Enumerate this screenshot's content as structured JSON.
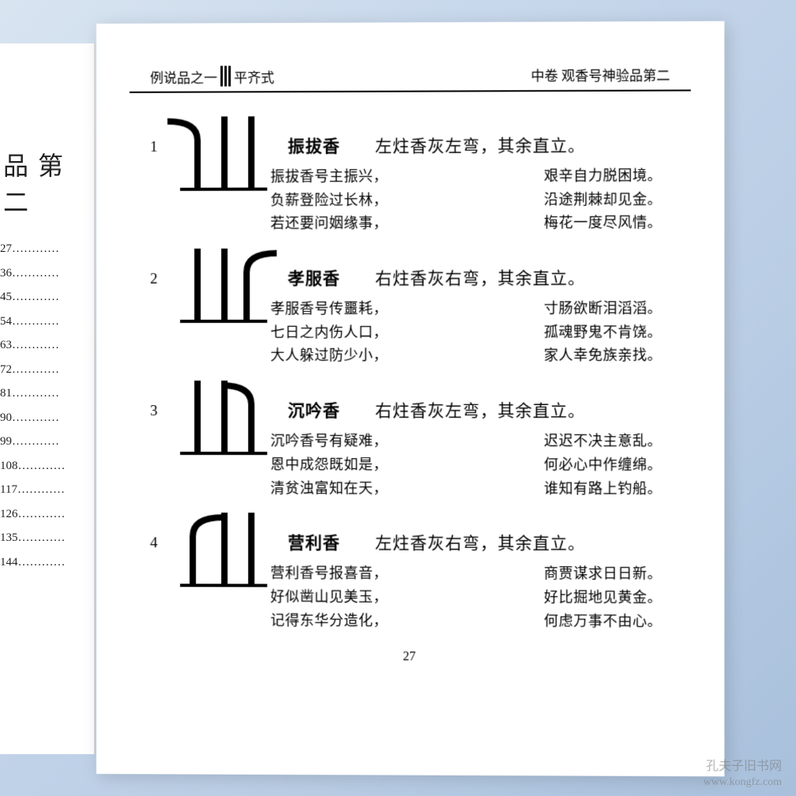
{
  "header": {
    "left_prefix": "例说品之一",
    "left_suffix": "平齐式",
    "right": "中卷 观香号神验品第二"
  },
  "left_page": {
    "title": "品 第 二",
    "toc": [
      "27",
      "36",
      "45",
      "54",
      "63",
      "72",
      "81",
      "90",
      "99",
      "108",
      "117",
      "126",
      "135",
      "144"
    ]
  },
  "entries": [
    {
      "num": "1",
      "name": "振拔香",
      "desc": "左炷香灰左弯，其余直立。",
      "diagram": {
        "left_bend": "left",
        "mid": "straight",
        "right": "straight"
      },
      "poem_left": [
        "振拔香号主振兴，",
        "负薪登险过长林，",
        "若还要问姻缘事，"
      ],
      "poem_right": [
        "艰辛自力脱困境。",
        "沿途荆棘却见金。",
        "梅花一度尽风情。"
      ]
    },
    {
      "num": "2",
      "name": "孝服香",
      "desc": "右炷香灰右弯，其余直立。",
      "diagram": {
        "left": "straight",
        "mid": "straight",
        "right_bend": "right"
      },
      "poem_left": [
        "孝服香号传噩耗，",
        "七日之内伤人口，",
        "大人躲过防少小，"
      ],
      "poem_right": [
        "寸肠欲断泪滔滔。",
        "孤魂野鬼不肯饶。",
        "家人幸免族亲找。"
      ]
    },
    {
      "num": "3",
      "name": "沉吟香",
      "desc": "右炷香灰左弯，其余直立。",
      "diagram": {
        "left": "straight",
        "mid": "straight",
        "right_bend": "left"
      },
      "poem_left": [
        "沉吟香号有疑难，",
        "恩中成怨既如是，",
        "清贫浊富知在天，"
      ],
      "poem_right": [
        "迟迟不决主意乱。",
        "何必心中作缠绵。",
        "谁知有路上钓船。"
      ]
    },
    {
      "num": "4",
      "name": "营利香",
      "desc": "左炷香灰右弯，其余直立。",
      "diagram": {
        "left_bend": "right",
        "mid": "straight",
        "right": "straight"
      },
      "poem_left": [
        "营利香号报喜音，",
        "好似凿山见美玉，",
        "记得东华分造化，"
      ],
      "poem_right": [
        "商贾谋求日日新。",
        "好比掘地见黄金。",
        "何虑万事不由心。"
      ]
    }
  ],
  "page_number": "27",
  "watermark": {
    "cn": "孔夫子旧书网",
    "en": "www.kongfz.com"
  },
  "colors": {
    "text": "#000000",
    "bg": "#ffffff",
    "shadow": "rgba(0,0,0,0.15)"
  }
}
